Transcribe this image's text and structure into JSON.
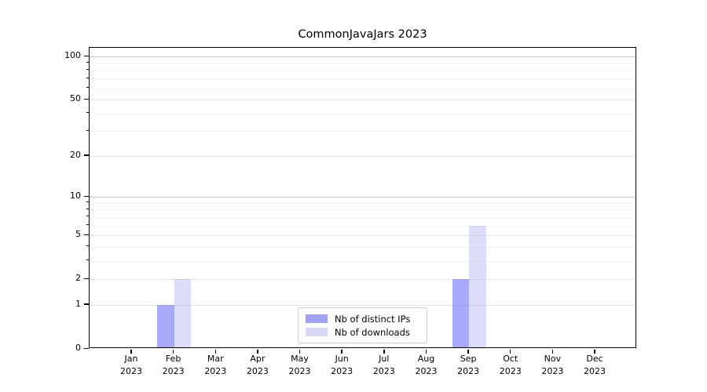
{
  "chart_data": {
    "type": "bar",
    "title": "CommonJavaJars 2023",
    "categories": [
      "Jan 2023",
      "Feb 2023",
      "Mar 2023",
      "Apr 2023",
      "May 2023",
      "Jun 2023",
      "Jul 2023",
      "Aug 2023",
      "Sep 2023",
      "Oct 2023",
      "Nov 2023",
      "Dec 2023"
    ],
    "series": [
      {
        "name": "Nb of distinct IPs",
        "values": [
          0,
          1,
          0,
          0,
          0,
          0,
          0,
          0,
          2,
          0,
          0,
          0
        ]
      },
      {
        "name": "Nb of downloads",
        "values": [
          0,
          2,
          0,
          0,
          0,
          0,
          0,
          0,
          6,
          0,
          0,
          0
        ]
      }
    ],
    "xlabel": "",
    "ylabel": "",
    "yscale": "log1p",
    "ylim": [
      0,
      116
    ],
    "yticks_major": [
      0,
      1,
      2,
      5,
      10,
      20,
      50,
      100
    ],
    "yticks_minor": [
      3,
      4,
      6,
      7,
      8,
      9,
      30,
      40,
      60,
      70,
      80,
      90
    ],
    "grid": "both",
    "legend_position": "lower center inside"
  },
  "colors": {
    "bar_distinct_ips": "rgba(100,100,245,0.55)",
    "bar_downloads": "rgba(170,170,240,0.40)",
    "legend_swatch_distinct_ips": "#a2a2f2",
    "legend_swatch_downloads": "#d9d9f7",
    "grid_decade": "#c8c8c8",
    "grid_major": "#e4e4e4",
    "grid_minor": "#f3f3f3",
    "axis": "#000000"
  }
}
